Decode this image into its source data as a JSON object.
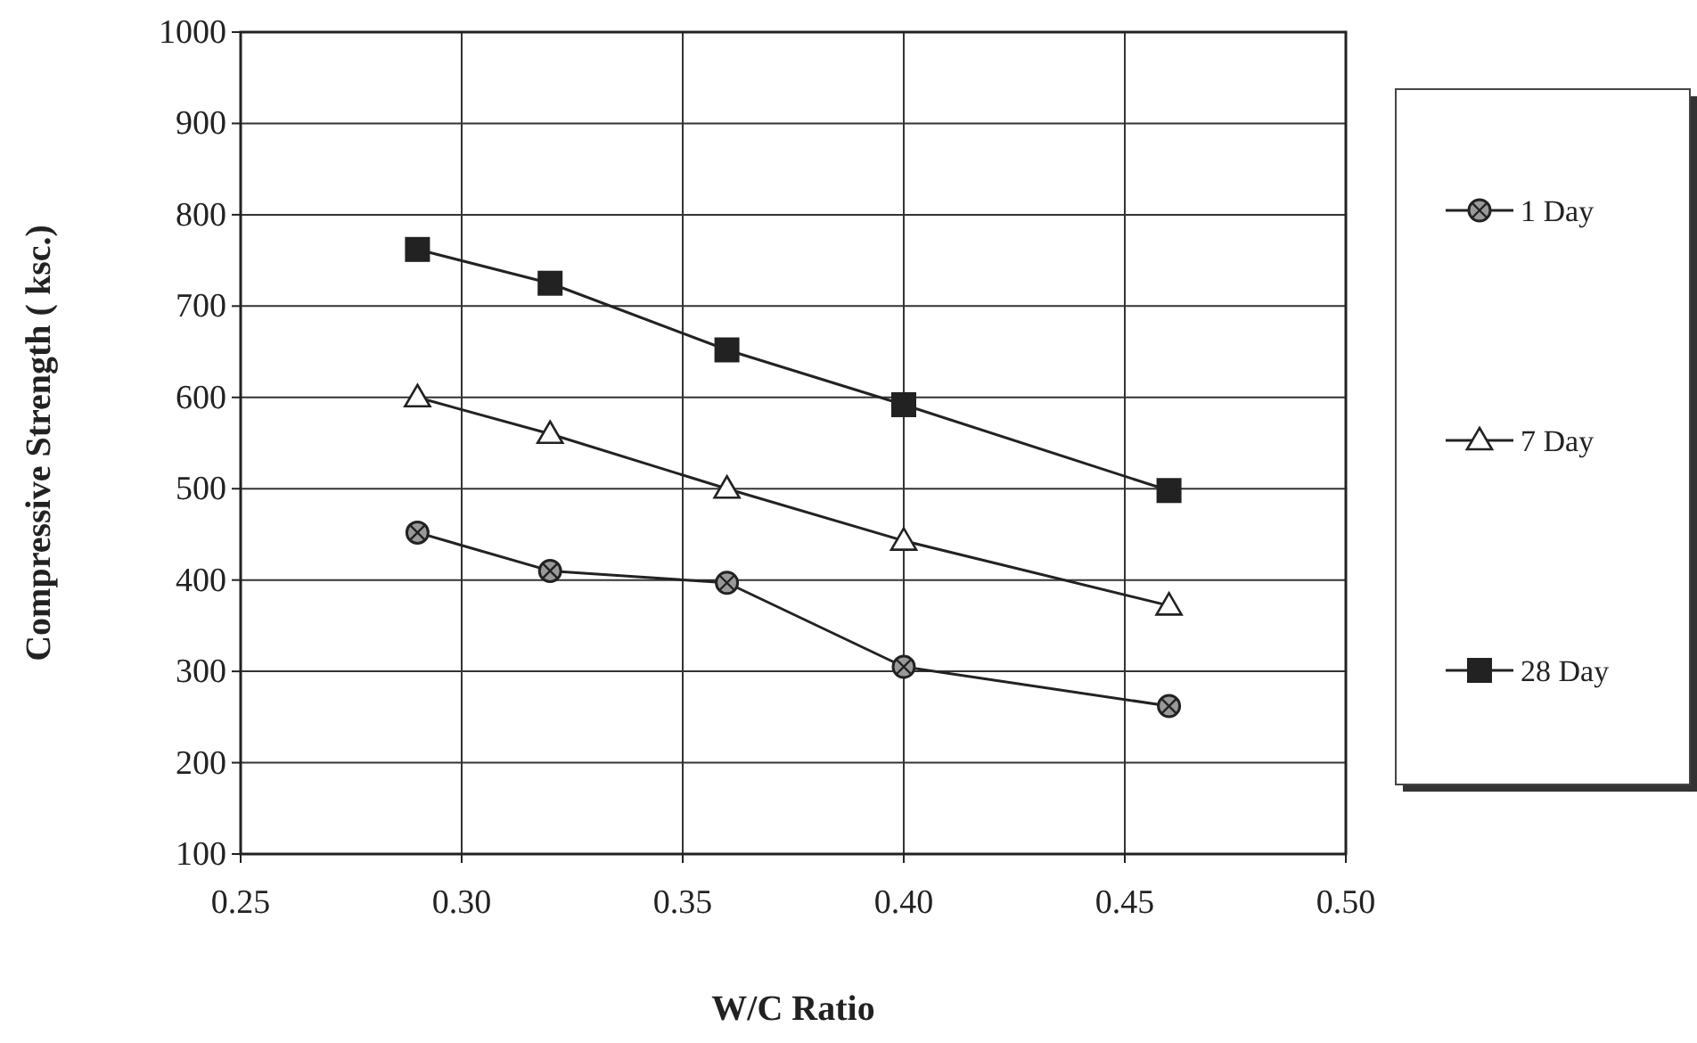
{
  "chart_data": {
    "type": "line",
    "xlabel": "W/C Ratio",
    "ylabel": "Compressive Strength ( ksc.)",
    "x": [
      0.29,
      0.32,
      0.36,
      0.4,
      0.46
    ],
    "series": [
      {
        "name": "1 Day",
        "color": "#222222",
        "marker": "circle",
        "values": [
          452,
          410,
          397,
          305,
          262
        ]
      },
      {
        "name": "7 Day",
        "color": "#222222",
        "marker": "triangle",
        "values": [
          600,
          560,
          500,
          443,
          372
        ]
      },
      {
        "name": "28 Day",
        "color": "#222222",
        "marker": "square",
        "values": [
          762,
          725,
          652,
          592,
          498
        ]
      }
    ],
    "xlim": [
      0.25,
      0.5
    ],
    "xticks": [
      {
        "value": 0.25,
        "label": "0.25"
      },
      {
        "value": 0.3,
        "label": "0.30"
      },
      {
        "value": 0.35,
        "label": "0.35"
      },
      {
        "value": 0.4,
        "label": "0.40"
      },
      {
        "value": 0.45,
        "label": "0.45"
      },
      {
        "value": 0.5,
        "label": "0.50"
      }
    ],
    "ylim": [
      100,
      1000
    ],
    "yticks": [
      100,
      200,
      300,
      400,
      500,
      600,
      700,
      800,
      900,
      1000
    ],
    "grid": true,
    "legend": "right",
    "line_style": "solid"
  }
}
